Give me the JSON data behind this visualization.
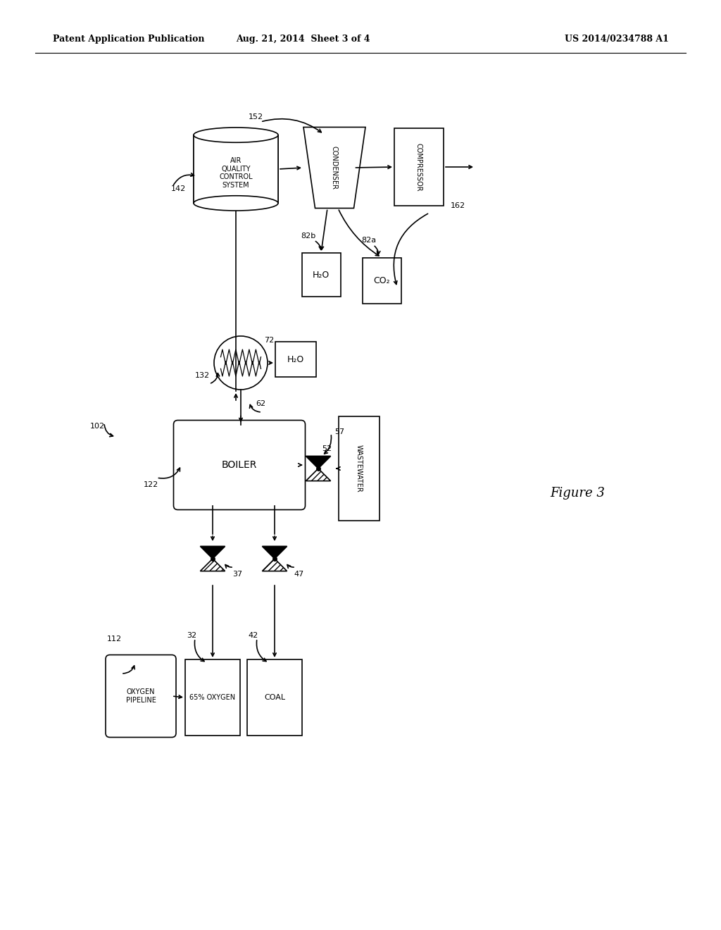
{
  "title_left": "Patent Application Publication",
  "title_center": "Aug. 21, 2014  Sheet 3 of 4",
  "title_right": "US 2014/0234788 A1",
  "figure_label": "Figure 3",
  "bg_color": "#ffffff",
  "lc": "#000000",
  "lw": 1.2,
  "figsize": [
    10.24,
    13.2
  ],
  "dpi": 100
}
